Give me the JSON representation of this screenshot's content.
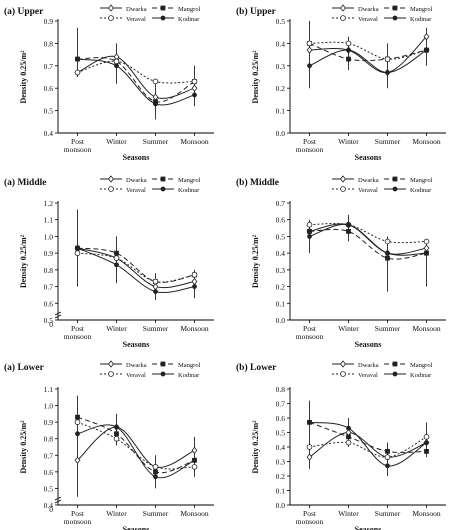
{
  "chart_data": [
    {
      "type": "line",
      "title": "(a) Upper",
      "xlabel": "Seasons",
      "ylabel": "Density 0.25/m²",
      "ylim": [
        0.4,
        0.9
      ],
      "yticks": [
        0.4,
        0.5,
        0.6,
        0.7,
        0.8,
        0.9
      ],
      "categories": [
        "Post monsoon",
        "Winter",
        "Summer",
        "Monsoon"
      ],
      "legend": "top-right",
      "series": [
        {
          "name": "Dwarka",
          "values": [
            0.67,
            0.74,
            0.56,
            0.6
          ],
          "style": "solid",
          "marker": "open-diamond"
        },
        {
          "name": "Mangrol",
          "values": [
            0.73,
            0.72,
            0.54,
            0.63
          ],
          "style": "dashed",
          "marker": "filled-square"
        },
        {
          "name": "Veraval",
          "values": [
            0.67,
            0.72,
            0.63,
            0.63
          ],
          "style": "dotted",
          "marker": "open-circle"
        },
        {
          "name": "Kodinar",
          "values": [
            0.73,
            0.7,
            0.53,
            0.57
          ],
          "style": "solid",
          "marker": "filled-circle"
        }
      ],
      "errors": [
        [
          0.65,
          0.87
        ],
        [
          0.62,
          0.8
        ],
        [
          0.46,
          0.62
        ],
        [
          0.52,
          0.7
        ]
      ]
    },
    {
      "type": "line",
      "title": "(b) Upper",
      "xlabel": "Seasons",
      "ylabel": "Density 0.25/m²",
      "ylim": [
        0.0,
        0.5
      ],
      "yticks": [
        0.0,
        0.1,
        0.2,
        0.3,
        0.4,
        0.5
      ],
      "categories": [
        "Post monsoon",
        "Winter",
        "Summer",
        "Monsoon"
      ],
      "legend": "top-right",
      "series": [
        {
          "name": "Dwarka",
          "values": [
            0.37,
            0.37,
            0.27,
            0.43
          ],
          "style": "solid",
          "marker": "open-diamond"
        },
        {
          "name": "Mangrol",
          "values": [
            0.4,
            0.33,
            0.33,
            0.37
          ],
          "style": "dashed",
          "marker": "filled-square"
        },
        {
          "name": "Veraval",
          "values": [
            0.4,
            0.4,
            0.33,
            0.37
          ],
          "style": "dotted",
          "marker": "open-circle"
        },
        {
          "name": "Kodinar",
          "values": [
            0.3,
            0.37,
            0.27,
            0.37
          ],
          "style": "solid",
          "marker": "filled-circle"
        }
      ],
      "errors": [
        [
          0.2,
          0.5
        ],
        [
          0.28,
          0.43
        ],
        [
          0.2,
          0.4
        ],
        [
          0.3,
          0.47
        ]
      ]
    },
    {
      "type": "line",
      "title": "(a) Middle",
      "xlabel": "Seasons",
      "ylabel": "Density 0.25/m²",
      "ylim": [
        0.0,
        1.2
      ],
      "ylim_view": [
        0.5,
        1.2
      ],
      "yticks": [
        0.5,
        0.6,
        0.7,
        0.8,
        0.9,
        1.0,
        1.1,
        1.2
      ],
      "y_axis_break_label": "0",
      "categories": [
        "Post monsoon",
        "Winter",
        "Summer",
        "Monsoon"
      ],
      "legend": "top-right",
      "series": [
        {
          "name": "Dwarka",
          "values": [
            0.93,
            0.87,
            0.7,
            0.73
          ],
          "style": "solid",
          "marker": "open-diamond"
        },
        {
          "name": "Mangrol",
          "values": [
            0.93,
            0.9,
            0.73,
            0.77
          ],
          "style": "dashed",
          "marker": "filled-square"
        },
        {
          "name": "Veraval",
          "values": [
            0.9,
            0.87,
            0.73,
            0.77
          ],
          "style": "dotted",
          "marker": "open-circle"
        },
        {
          "name": "Kodinar",
          "values": [
            0.93,
            0.83,
            0.67,
            0.7
          ],
          "style": "solid",
          "marker": "filled-circle"
        }
      ],
      "errors": [
        [
          0.7,
          1.16
        ],
        [
          0.72,
          1.0
        ],
        [
          0.62,
          0.78
        ],
        [
          0.63,
          0.8
        ]
      ]
    },
    {
      "type": "line",
      "title": "(b) Middle",
      "xlabel": "Seasons",
      "ylabel": "Density 0.25/m²",
      "ylim": [
        0.0,
        0.7
      ],
      "yticks": [
        0.0,
        0.1,
        0.2,
        0.3,
        0.4,
        0.5,
        0.6,
        0.7
      ],
      "categories": [
        "Post monsoon",
        "Winter",
        "Summer",
        "Monsoon"
      ],
      "legend": "top-right",
      "series": [
        {
          "name": "Dwarka",
          "values": [
            0.53,
            0.57,
            0.4,
            0.43
          ],
          "style": "solid",
          "marker": "open-diamond"
        },
        {
          "name": "Mangrol",
          "values": [
            0.53,
            0.53,
            0.37,
            0.4
          ],
          "style": "dashed",
          "marker": "filled-square"
        },
        {
          "name": "Veraval",
          "values": [
            0.57,
            0.57,
            0.47,
            0.47
          ],
          "style": "dotted",
          "marker": "open-circle"
        },
        {
          "name": "Kodinar",
          "values": [
            0.5,
            0.57,
            0.4,
            0.4
          ],
          "style": "solid",
          "marker": "filled-circle"
        }
      ],
      "errors": [
        [
          0.4,
          0.6
        ],
        [
          0.47,
          0.63
        ],
        [
          0.17,
          0.5
        ],
        [
          0.2,
          0.47
        ]
      ]
    },
    {
      "type": "line",
      "title": "(a) Lower",
      "xlabel": "Seasons",
      "ylabel": "Density 0.25/m²",
      "ylim": [
        0.0,
        1.1
      ],
      "ylim_view": [
        0.4,
        1.1
      ],
      "yticks": [
        0.4,
        0.5,
        0.6,
        0.7,
        0.8,
        0.9,
        1.0,
        1.1
      ],
      "y_axis_break_label": "0",
      "categories": [
        "Post monsoon",
        "Winter",
        "Summer",
        "Monsoon"
      ],
      "legend": "top-right",
      "series": [
        {
          "name": "Dwarka",
          "values": [
            0.67,
            0.87,
            0.63,
            0.73
          ],
          "style": "solid",
          "marker": "open-diamond"
        },
        {
          "name": "Mangrol",
          "values": [
            0.93,
            0.83,
            0.6,
            0.67
          ],
          "style": "dashed",
          "marker": "filled-square"
        },
        {
          "name": "Veraval",
          "values": [
            0.9,
            0.8,
            0.63,
            0.63
          ],
          "style": "dotted",
          "marker": "open-circle"
        },
        {
          "name": "Kodinar",
          "values": [
            0.83,
            0.87,
            0.57,
            0.67
          ],
          "style": "solid",
          "marker": "filled-circle"
        }
      ],
      "errors": [
        [
          0.45,
          1.06
        ],
        [
          0.76,
          0.95
        ],
        [
          0.5,
          0.7
        ],
        [
          0.57,
          0.81
        ]
      ]
    },
    {
      "type": "line",
      "title": "(b) Lower",
      "xlabel": "Seasons",
      "ylabel": "Density 0.25/m²",
      "ylim": [
        0.0,
        0.8
      ],
      "yticks": [
        0.0,
        0.1,
        0.2,
        0.3,
        0.4,
        0.5,
        0.6,
        0.7,
        0.8
      ],
      "categories": [
        "Post monsoon",
        "Winter",
        "Summer",
        "Monsoon"
      ],
      "legend": "top-right",
      "series": [
        {
          "name": "Dwarka",
          "values": [
            0.33,
            0.5,
            0.33,
            0.43
          ],
          "style": "solid",
          "marker": "open-diamond"
        },
        {
          "name": "Mangrol",
          "values": [
            0.57,
            0.47,
            0.37,
            0.37
          ],
          "style": "dashed",
          "marker": "filled-square"
        },
        {
          "name": "Veraval",
          "values": [
            0.4,
            0.43,
            0.33,
            0.47
          ],
          "style": "dotted",
          "marker": "open-circle"
        },
        {
          "name": "Kodinar",
          "values": [
            0.57,
            0.53,
            0.27,
            0.43
          ],
          "style": "solid",
          "marker": "filled-circle"
        }
      ],
      "errors": [
        [
          0.25,
          0.72
        ],
        [
          0.4,
          0.6
        ],
        [
          0.2,
          0.43
        ],
        [
          0.33,
          0.57
        ]
      ]
    }
  ],
  "colors": {
    "line": "#222222",
    "axis": "#000000",
    "background": "#ffffff"
  }
}
